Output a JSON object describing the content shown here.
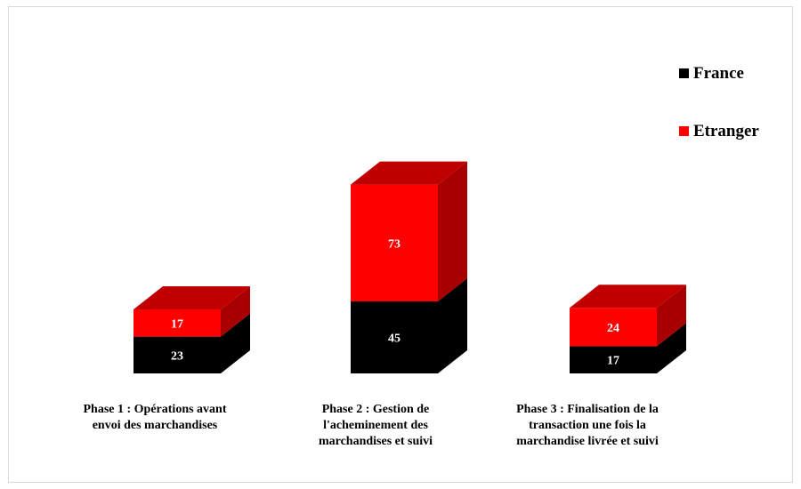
{
  "chart_data": {
    "type": "bar",
    "stacked": true,
    "three_d": true,
    "categories": [
      [
        "Phase 1 : Opérations avant",
        "envoi des marchandises"
      ],
      [
        "Phase 2 : Gestion de",
        "l'acheminement des",
        "marchandises et suivi"
      ],
      [
        "Phase 3 : Finalisation de la",
        "transaction une fois la",
        "marchandise livrée et suivi"
      ]
    ],
    "series": [
      {
        "name": "France",
        "values": [
          23,
          45,
          17
        ],
        "color": "#000000",
        "side_color": "#000000",
        "top_color": "#000000"
      },
      {
        "name": "Etranger",
        "values": [
          17,
          73,
          24
        ],
        "color": "#ff0000",
        "side_color": "#a80000",
        "top_color": "#c00000"
      }
    ],
    "data_labels": true,
    "grid": false,
    "axes_visible": false,
    "legend_position": "top-right"
  }
}
